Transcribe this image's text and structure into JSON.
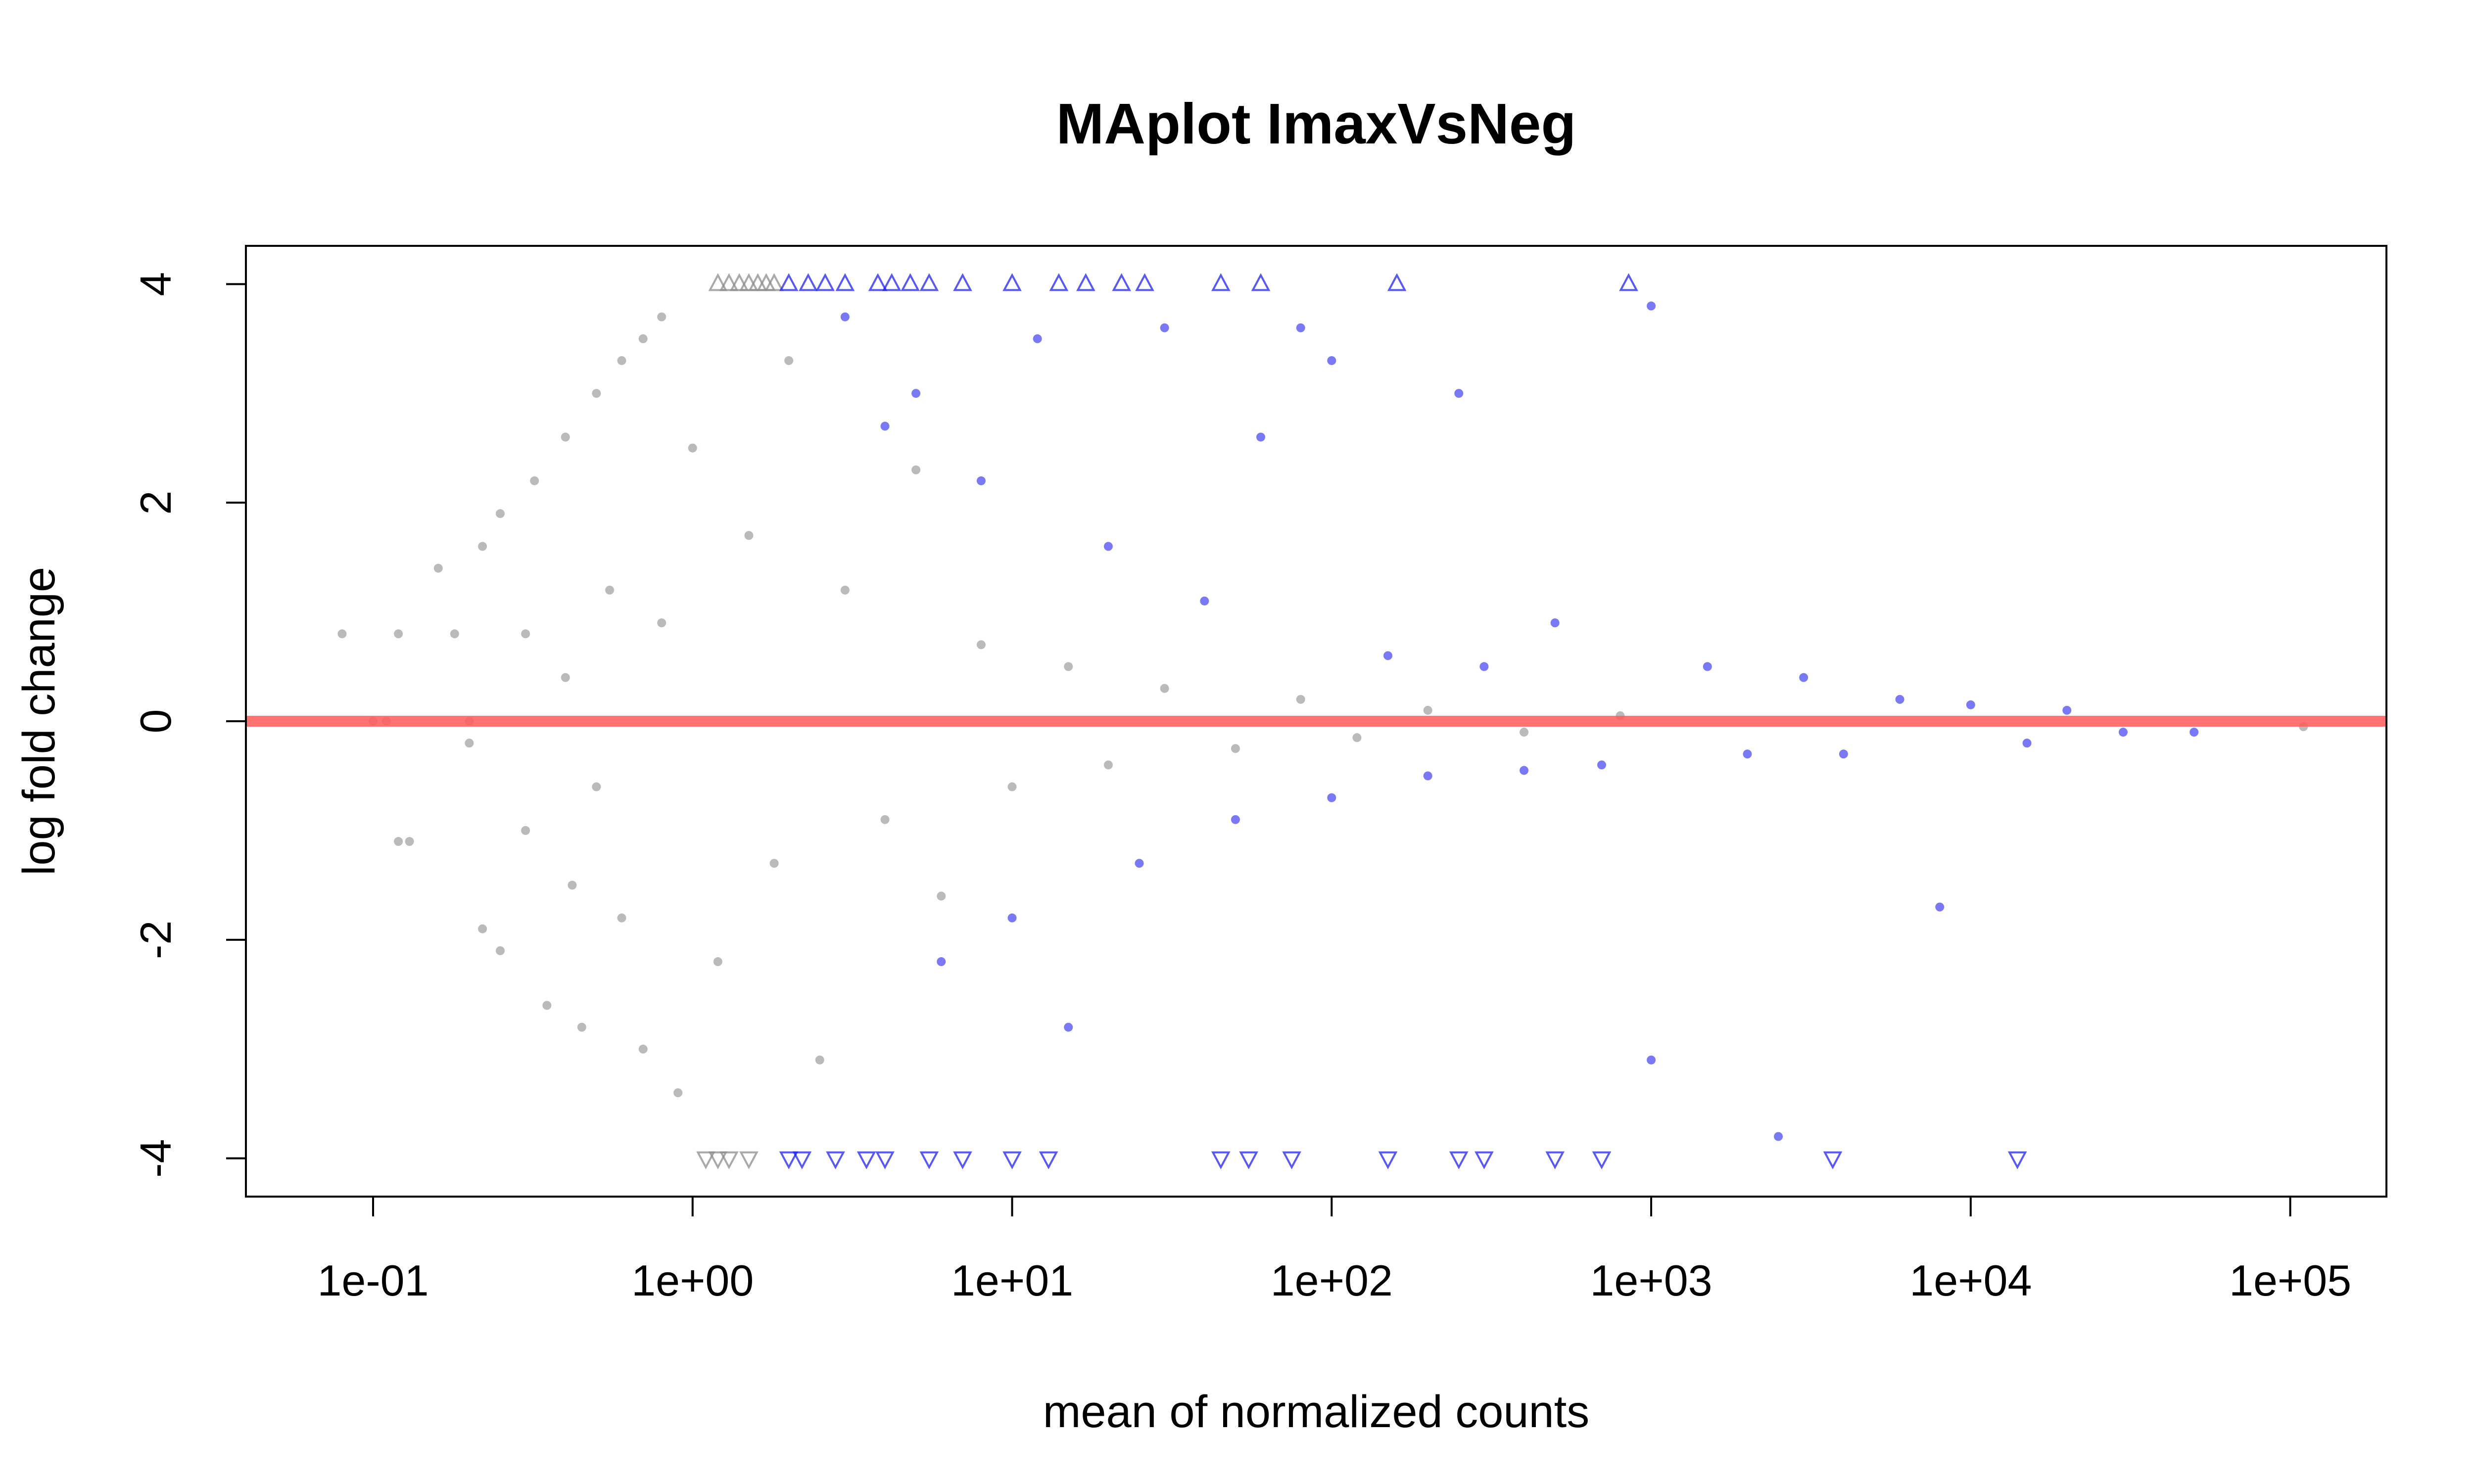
{
  "chart_data": {
    "type": "scatter",
    "title": "MAplot ImaxVsNeg",
    "xlabel": "mean of normalized counts",
    "ylabel": "log fold change",
    "x_scale": "log10",
    "xlim": [
      0.04,
      200000
    ],
    "ylim": [
      -4.35,
      4.35
    ],
    "x_ticks": [
      0.1,
      1,
      10,
      100,
      1000,
      10000,
      100000
    ],
    "x_tick_labels": [
      "1e-01",
      "1e+00",
      "1e+01",
      "1e+02",
      "1e+03",
      "1e+04",
      "1e+05"
    ],
    "y_ticks": [
      -4,
      -2,
      0,
      2,
      4
    ],
    "y_tick_labels": [
      "-4",
      "-2",
      "0",
      "2",
      "4"
    ],
    "reference_line": {
      "y": 0,
      "color": "#ff5a5a"
    },
    "grid": false,
    "legend": "none",
    "colors": {
      "not_significant": "#8c8c8c",
      "significant": "#2020f0"
    },
    "series": [
      {
        "marker": "circle",
        "color": "#8c8c8c",
        "values": [
          {
            "x": 0.08,
            "y": 0.8
          },
          {
            "x": 0.1,
            "y": 0
          },
          {
            "x": 0.11,
            "y": 0
          },
          {
            "x": 0.12,
            "y": 0.8
          },
          {
            "x": 0.12,
            "y": -1.1
          },
          {
            "x": 0.13,
            "y": -1.1
          },
          {
            "x": 0.16,
            "y": 1.4
          },
          {
            "x": 0.18,
            "y": 0.8
          },
          {
            "x": 0.2,
            "y": 0
          },
          {
            "x": 0.2,
            "y": -0.2
          },
          {
            "x": 0.22,
            "y": 1.6
          },
          {
            "x": 0.22,
            "y": -1.9
          },
          {
            "x": 0.25,
            "y": 1.9
          },
          {
            "x": 0.25,
            "y": -2.1
          },
          {
            "x": 0.3,
            "y": 0.8
          },
          {
            "x": 0.3,
            "y": -1.0
          },
          {
            "x": 0.32,
            "y": 2.2
          },
          {
            "x": 0.35,
            "y": -2.6
          },
          {
            "x": 0.4,
            "y": 2.6
          },
          {
            "x": 0.4,
            "y": 0.4
          },
          {
            "x": 0.42,
            "y": -1.5
          },
          {
            "x": 0.45,
            "y": -2.8
          },
          {
            "x": 0.5,
            "y": 3.0
          },
          {
            "x": 0.5,
            "y": -0.6
          },
          {
            "x": 0.55,
            "y": 1.2
          },
          {
            "x": 0.6,
            "y": 3.3
          },
          {
            "x": 0.6,
            "y": -1.8
          },
          {
            "x": 0.7,
            "y": 3.5
          },
          {
            "x": 0.7,
            "y": -3.0
          },
          {
            "x": 0.8,
            "y": 3.7
          },
          {
            "x": 0.8,
            "y": 0.9
          },
          {
            "x": 0.9,
            "y": -3.4
          },
          {
            "x": 1.0,
            "y": 2.5
          },
          {
            "x": 1.2,
            "y": -2.2
          },
          {
            "x": 1.5,
            "y": 1.7
          },
          {
            "x": 1.8,
            "y": -1.3
          },
          {
            "x": 2.0,
            "y": 3.3
          },
          {
            "x": 2.5,
            "y": -3.1
          },
          {
            "x": 3.0,
            "y": 1.2
          },
          {
            "x": 4.0,
            "y": -0.9
          },
          {
            "x": 5.0,
            "y": 2.3
          },
          {
            "x": 6.0,
            "y": -1.6
          },
          {
            "x": 8.0,
            "y": 0.7
          },
          {
            "x": 10.0,
            "y": -0.6
          },
          {
            "x": 15.0,
            "y": 0.5
          },
          {
            "x": 20.0,
            "y": -0.4
          },
          {
            "x": 30.0,
            "y": 0.3
          },
          {
            "x": 50.0,
            "y": -0.25
          },
          {
            "x": 80.0,
            "y": 0.2
          },
          {
            "x": 120.0,
            "y": -0.15
          },
          {
            "x": 200.0,
            "y": 0.1
          },
          {
            "x": 400.0,
            "y": -0.1
          },
          {
            "x": 800.0,
            "y": 0.05
          },
          {
            "x": 110000,
            "y": -0.05
          }
        ]
      },
      {
        "marker": "circle",
        "color": "#2020f0",
        "values": [
          {
            "x": 3.0,
            "y": 3.7
          },
          {
            "x": 4.0,
            "y": 2.7
          },
          {
            "x": 5.0,
            "y": 3.0
          },
          {
            "x": 6.0,
            "y": -2.2
          },
          {
            "x": 8.0,
            "y": 2.2
          },
          {
            "x": 10.0,
            "y": -1.8
          },
          {
            "x": 12.0,
            "y": 3.5
          },
          {
            "x": 15.0,
            "y": -2.8
          },
          {
            "x": 20.0,
            "y": 1.6
          },
          {
            "x": 25.0,
            "y": -1.3
          },
          {
            "x": 30.0,
            "y": 3.6
          },
          {
            "x": 40.0,
            "y": 1.1
          },
          {
            "x": 50.0,
            "y": -0.9
          },
          {
            "x": 60.0,
            "y": 2.6
          },
          {
            "x": 80.0,
            "y": 3.6
          },
          {
            "x": 100.0,
            "y": 3.3
          },
          {
            "x": 100.0,
            "y": -0.7
          },
          {
            "x": 150.0,
            "y": 0.6
          },
          {
            "x": 200.0,
            "y": -0.5
          },
          {
            "x": 250.0,
            "y": 3.0
          },
          {
            "x": 300.0,
            "y": 0.5
          },
          {
            "x": 400.0,
            "y": -0.45
          },
          {
            "x": 500.0,
            "y": 0.9
          },
          {
            "x": 700.0,
            "y": -0.4
          },
          {
            "x": 1000.0,
            "y": 3.8
          },
          {
            "x": 1000.0,
            "y": -3.1
          },
          {
            "x": 1500.0,
            "y": 0.5
          },
          {
            "x": 2000.0,
            "y": -0.3
          },
          {
            "x": 2500.0,
            "y": -3.8
          },
          {
            "x": 3000.0,
            "y": 0.4
          },
          {
            "x": 4000.0,
            "y": -0.3
          },
          {
            "x": 6000.0,
            "y": 0.2
          },
          {
            "x": 8000.0,
            "y": -1.7
          },
          {
            "x": 10000.0,
            "y": 0.15
          },
          {
            "x": 15000.0,
            "y": -0.2
          },
          {
            "x": 20000.0,
            "y": 0.1
          },
          {
            "x": 30000.0,
            "y": -0.1
          },
          {
            "x": 50000.0,
            "y": -0.1
          }
        ]
      },
      {
        "marker": "triangle-up",
        "color": "#8c8c8c",
        "values": [
          {
            "x": 1.2,
            "y": 4
          },
          {
            "x": 1.3,
            "y": 4
          },
          {
            "x": 1.4,
            "y": 4
          },
          {
            "x": 1.5,
            "y": 4
          },
          {
            "x": 1.6,
            "y": 4
          },
          {
            "x": 1.7,
            "y": 4
          },
          {
            "x": 1.8,
            "y": 4
          }
        ]
      },
      {
        "marker": "triangle-up",
        "color": "#2020f0",
        "values": [
          {
            "x": 2.0,
            "y": 4
          },
          {
            "x": 2.3,
            "y": 4
          },
          {
            "x": 2.6,
            "y": 4
          },
          {
            "x": 3.0,
            "y": 4
          },
          {
            "x": 3.8,
            "y": 4
          },
          {
            "x": 4.2,
            "y": 4
          },
          {
            "x": 4.8,
            "y": 4
          },
          {
            "x": 5.5,
            "y": 4
          },
          {
            "x": 7.0,
            "y": 4
          },
          {
            "x": 10.0,
            "y": 4
          },
          {
            "x": 14.0,
            "y": 4
          },
          {
            "x": 17.0,
            "y": 4
          },
          {
            "x": 22.0,
            "y": 4
          },
          {
            "x": 26.0,
            "y": 4
          },
          {
            "x": 45.0,
            "y": 4
          },
          {
            "x": 60.0,
            "y": 4
          },
          {
            "x": 160.0,
            "y": 4
          },
          {
            "x": 850.0,
            "y": 4
          }
        ]
      },
      {
        "marker": "triangle-down",
        "color": "#8c8c8c",
        "values": [
          {
            "x": 1.1,
            "y": -4
          },
          {
            "x": 1.2,
            "y": -4
          },
          {
            "x": 1.3,
            "y": -4
          },
          {
            "x": 1.5,
            "y": -4
          }
        ]
      },
      {
        "marker": "triangle-down",
        "color": "#2020f0",
        "values": [
          {
            "x": 2.0,
            "y": -4
          },
          {
            "x": 2.2,
            "y": -4
          },
          {
            "x": 2.8,
            "y": -4
          },
          {
            "x": 3.5,
            "y": -4
          },
          {
            "x": 4.0,
            "y": -4
          },
          {
            "x": 5.5,
            "y": -4
          },
          {
            "x": 7.0,
            "y": -4
          },
          {
            "x": 10.0,
            "y": -4
          },
          {
            "x": 13.0,
            "y": -4
          },
          {
            "x": 45.0,
            "y": -4
          },
          {
            "x": 55.0,
            "y": -4
          },
          {
            "x": 75.0,
            "y": -4
          },
          {
            "x": 150.0,
            "y": -4
          },
          {
            "x": 250.0,
            "y": -4
          },
          {
            "x": 300.0,
            "y": -4
          },
          {
            "x": 500.0,
            "y": -4
          },
          {
            "x": 700.0,
            "y": -4
          },
          {
            "x": 3700.0,
            "y": -4
          },
          {
            "x": 14000.0,
            "y": -4
          }
        ]
      }
    ]
  }
}
